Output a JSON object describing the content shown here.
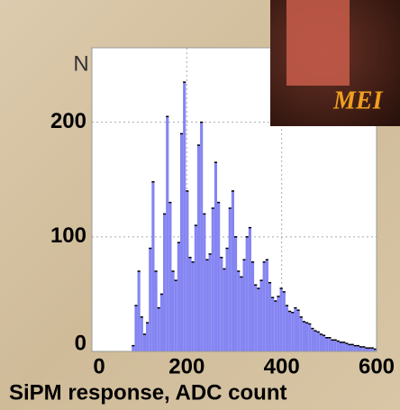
{
  "chart_data": {
    "type": "histogram",
    "x_label": "SiPM response, ADC count",
    "y_label": "N",
    "annotation": "MEI",
    "color": "#8585f2",
    "edge_color": "#000000",
    "grid": true,
    "xlim": [
      0,
      600
    ],
    "xticks": [
      0,
      200,
      400,
      600
    ],
    "ylim": [
      0,
      265
    ],
    "yticks": [
      0,
      100,
      200
    ],
    "bins": [
      84,
      90,
      96,
      102,
      108,
      114,
      120,
      126,
      132,
      138,
      144,
      150,
      156,
      162,
      168,
      174,
      180,
      186,
      192,
      198,
      204,
      210,
      216,
      222,
      228,
      234,
      240,
      246,
      252,
      258,
      264,
      270,
      276,
      282,
      288,
      294,
      300,
      306,
      312,
      318,
      324,
      330,
      336,
      342,
      348,
      354,
      360,
      366,
      372,
      378,
      384,
      390,
      396,
      402,
      408,
      414,
      420,
      426,
      432,
      438,
      444,
      450,
      456,
      462,
      468,
      474,
      480,
      486,
      492,
      498,
      504,
      510,
      516,
      522,
      528,
      534,
      540,
      546,
      552,
      558,
      564,
      570,
      576,
      582,
      588,
      594,
      600
    ],
    "values": [
      5,
      40,
      70,
      30,
      15,
      25,
      90,
      148,
      70,
      38,
      50,
      120,
      205,
      130,
      70,
      62,
      95,
      190,
      235,
      140,
      82,
      78,
      110,
      180,
      200,
      120,
      80,
      85,
      125,
      165,
      130,
      82,
      72,
      90,
      125,
      140,
      100,
      70,
      65,
      80,
      100,
      108,
      78,
      58,
      55,
      62,
      78,
      80,
      60,
      47,
      44,
      48,
      55,
      52,
      40,
      35,
      34,
      38,
      36,
      30,
      26,
      25,
      24,
      20,
      18,
      17,
      15,
      14,
      12,
      12,
      10,
      10,
      9,
      8,
      8,
      7,
      6,
      6,
      5,
      5,
      4,
      4,
      3,
      3,
      3,
      2
    ]
  }
}
